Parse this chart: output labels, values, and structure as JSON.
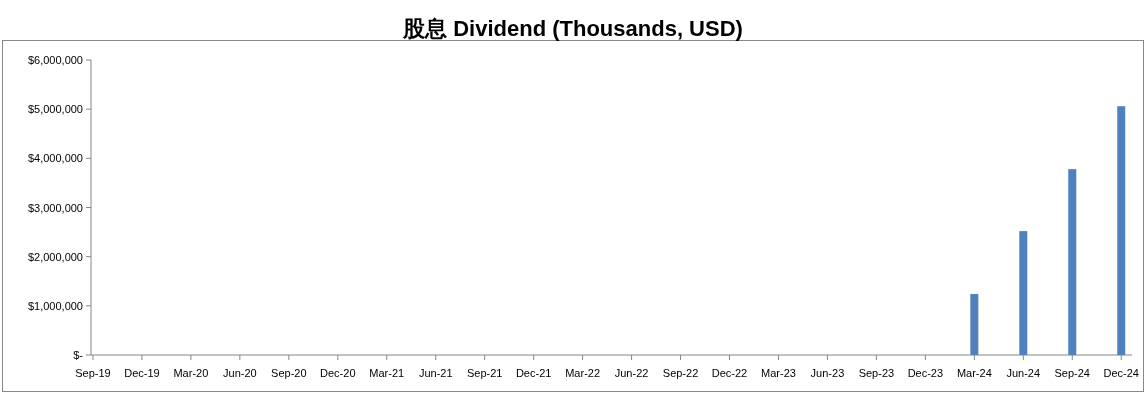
{
  "chart_data": {
    "type": "bar",
    "title": "股息 Dividend (Thousands, USD)",
    "categories": [
      "Sep-19",
      "Dec-19",
      "Mar-20",
      "Jun-20",
      "Sep-20",
      "Dec-20",
      "Mar-21",
      "Jun-21",
      "Sep-21",
      "Dec-21",
      "Mar-22",
      "Jun-22",
      "Sep-22",
      "Dec-22",
      "Mar-23",
      "Jun-23",
      "Sep-23",
      "Dec-23",
      "Mar-24",
      "Jun-24",
      "Sep-24",
      "Dec-24"
    ],
    "values": [
      0,
      0,
      0,
      0,
      0,
      0,
      0,
      0,
      0,
      0,
      0,
      0,
      0,
      0,
      0,
      0,
      0,
      0,
      1240000,
      2520000,
      3780000,
      5060000
    ],
    "color": "#4f81bd",
    "ylim": [
      0,
      6000000
    ],
    "yticks": [
      {
        "value": 0,
        "label": "$-"
      },
      {
        "value": 1000000,
        "label": "$1,000,000"
      },
      {
        "value": 2000000,
        "label": "$2,000,000"
      },
      {
        "value": 3000000,
        "label": "$3,000,000"
      },
      {
        "value": 4000000,
        "label": "$4,000,000"
      },
      {
        "value": 5000000,
        "label": "$5,000,000"
      },
      {
        "value": 6000000,
        "label": "$6,000,000"
      }
    ],
    "grid": false
  }
}
